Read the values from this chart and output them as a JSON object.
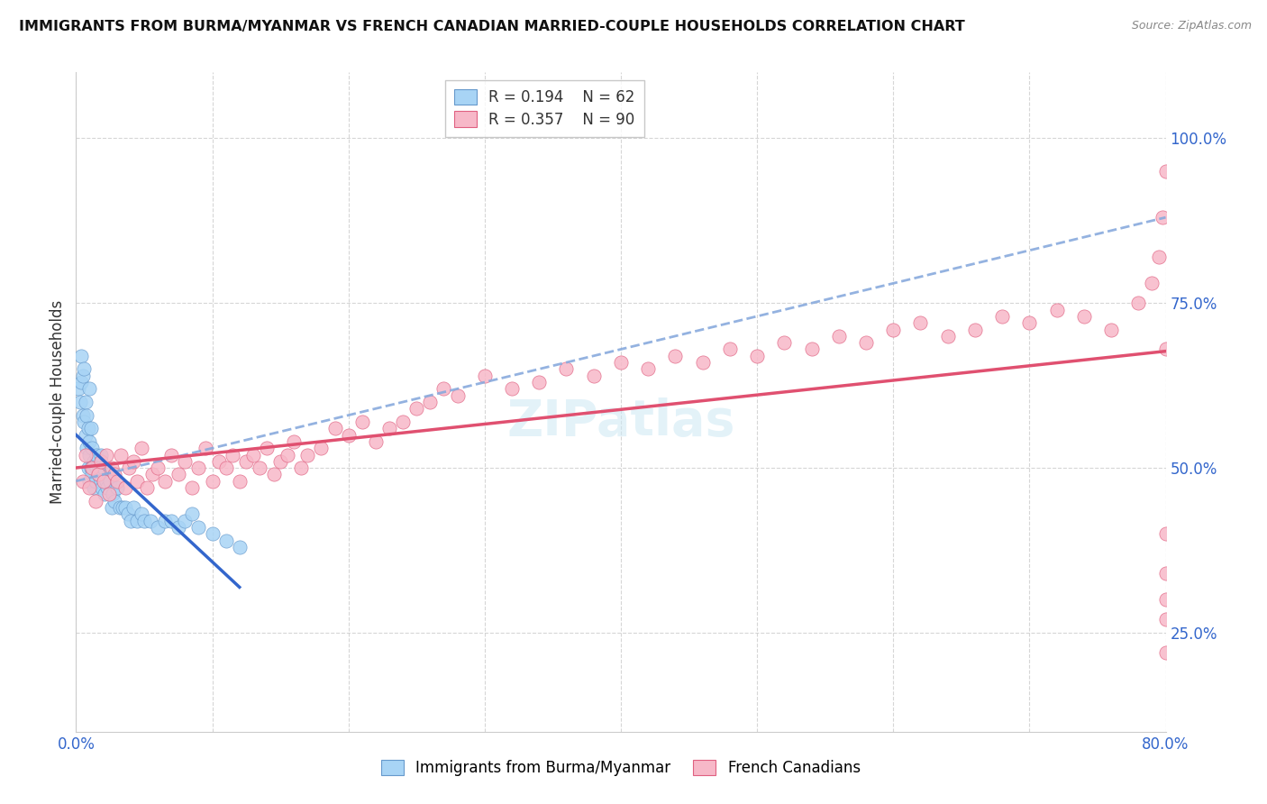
{
  "title": "IMMIGRANTS FROM BURMA/MYANMAR VS FRENCH CANADIAN MARRIED-COUPLE HOUSEHOLDS CORRELATION CHART",
  "source": "Source: ZipAtlas.com",
  "ylabel": "Married-couple Households",
  "ytick_labels": [
    "100.0%",
    "75.0%",
    "50.0%",
    "25.0%"
  ],
  "ytick_values": [
    1.0,
    0.75,
    0.5,
    0.25
  ],
  "xlim": [
    0.0,
    0.8
  ],
  "ylim": [
    0.1,
    1.1
  ],
  "legend_r1": "R = 0.194",
  "legend_n1": "N = 62",
  "legend_r2": "R = 0.357",
  "legend_n2": "N = 90",
  "color_blue": "#a8d4f5",
  "color_pink": "#f7b8c8",
  "edge_blue": "#6699cc",
  "edge_pink": "#e06080",
  "trendline_blue_solid": "#3366cc",
  "trendline_blue_dashed": "#88aadd",
  "trendline_pink": "#e05070",
  "background_color": "#ffffff",
  "grid_color": "#cccccc",
  "blue_x": [
    0.002,
    0.003,
    0.004,
    0.004,
    0.005,
    0.005,
    0.006,
    0.006,
    0.007,
    0.007,
    0.008,
    0.008,
    0.009,
    0.009,
    0.01,
    0.01,
    0.01,
    0.01,
    0.011,
    0.011,
    0.012,
    0.012,
    0.013,
    0.013,
    0.014,
    0.015,
    0.015,
    0.016,
    0.017,
    0.018,
    0.018,
    0.019,
    0.02,
    0.021,
    0.022,
    0.023,
    0.024,
    0.025,
    0.026,
    0.027,
    0.028,
    0.03,
    0.032,
    0.034,
    0.036,
    0.038,
    0.04,
    0.042,
    0.045,
    0.048,
    0.05,
    0.055,
    0.06,
    0.065,
    0.07,
    0.075,
    0.08,
    0.085,
    0.09,
    0.1,
    0.11,
    0.12
  ],
  "blue_y": [
    0.62,
    0.6,
    0.67,
    0.63,
    0.64,
    0.58,
    0.65,
    0.57,
    0.6,
    0.55,
    0.58,
    0.53,
    0.56,
    0.5,
    0.52,
    0.48,
    0.54,
    0.62,
    0.5,
    0.56,
    0.49,
    0.53,
    0.47,
    0.51,
    0.48,
    0.5,
    0.52,
    0.49,
    0.5,
    0.48,
    0.52,
    0.47,
    0.5,
    0.46,
    0.48,
    0.47,
    0.49,
    0.48,
    0.44,
    0.46,
    0.45,
    0.47,
    0.44,
    0.44,
    0.44,
    0.43,
    0.42,
    0.44,
    0.42,
    0.43,
    0.42,
    0.42,
    0.41,
    0.42,
    0.42,
    0.41,
    0.42,
    0.43,
    0.41,
    0.4,
    0.39,
    0.38
  ],
  "pink_x": [
    0.005,
    0.007,
    0.01,
    0.012,
    0.014,
    0.016,
    0.018,
    0.02,
    0.022,
    0.024,
    0.026,
    0.028,
    0.03,
    0.033,
    0.036,
    0.039,
    0.042,
    0.045,
    0.048,
    0.052,
    0.056,
    0.06,
    0.065,
    0.07,
    0.075,
    0.08,
    0.085,
    0.09,
    0.095,
    0.1,
    0.105,
    0.11,
    0.115,
    0.12,
    0.125,
    0.13,
    0.135,
    0.14,
    0.145,
    0.15,
    0.155,
    0.16,
    0.165,
    0.17,
    0.18,
    0.19,
    0.2,
    0.21,
    0.22,
    0.23,
    0.24,
    0.25,
    0.26,
    0.27,
    0.28,
    0.3,
    0.32,
    0.34,
    0.36,
    0.38,
    0.4,
    0.42,
    0.44,
    0.46,
    0.48,
    0.5,
    0.52,
    0.54,
    0.56,
    0.58,
    0.6,
    0.62,
    0.64,
    0.66,
    0.68,
    0.7,
    0.72,
    0.74,
    0.76,
    0.78,
    0.79,
    0.795,
    0.798,
    0.8,
    0.8,
    0.8,
    0.8,
    0.8,
    0.8,
    0.8
  ],
  "pink_y": [
    0.48,
    0.52,
    0.47,
    0.5,
    0.45,
    0.49,
    0.51,
    0.48,
    0.52,
    0.46,
    0.5,
    0.49,
    0.48,
    0.52,
    0.47,
    0.5,
    0.51,
    0.48,
    0.53,
    0.47,
    0.49,
    0.5,
    0.48,
    0.52,
    0.49,
    0.51,
    0.47,
    0.5,
    0.53,
    0.48,
    0.51,
    0.5,
    0.52,
    0.48,
    0.51,
    0.52,
    0.5,
    0.53,
    0.49,
    0.51,
    0.52,
    0.54,
    0.5,
    0.52,
    0.53,
    0.56,
    0.55,
    0.57,
    0.54,
    0.56,
    0.57,
    0.59,
    0.6,
    0.62,
    0.61,
    0.64,
    0.62,
    0.63,
    0.65,
    0.64,
    0.66,
    0.65,
    0.67,
    0.66,
    0.68,
    0.67,
    0.69,
    0.68,
    0.7,
    0.69,
    0.71,
    0.72,
    0.7,
    0.71,
    0.73,
    0.72,
    0.74,
    0.73,
    0.71,
    0.75,
    0.78,
    0.82,
    0.88,
    0.95,
    0.27,
    0.22,
    0.34,
    0.3,
    0.4,
    0.68
  ]
}
